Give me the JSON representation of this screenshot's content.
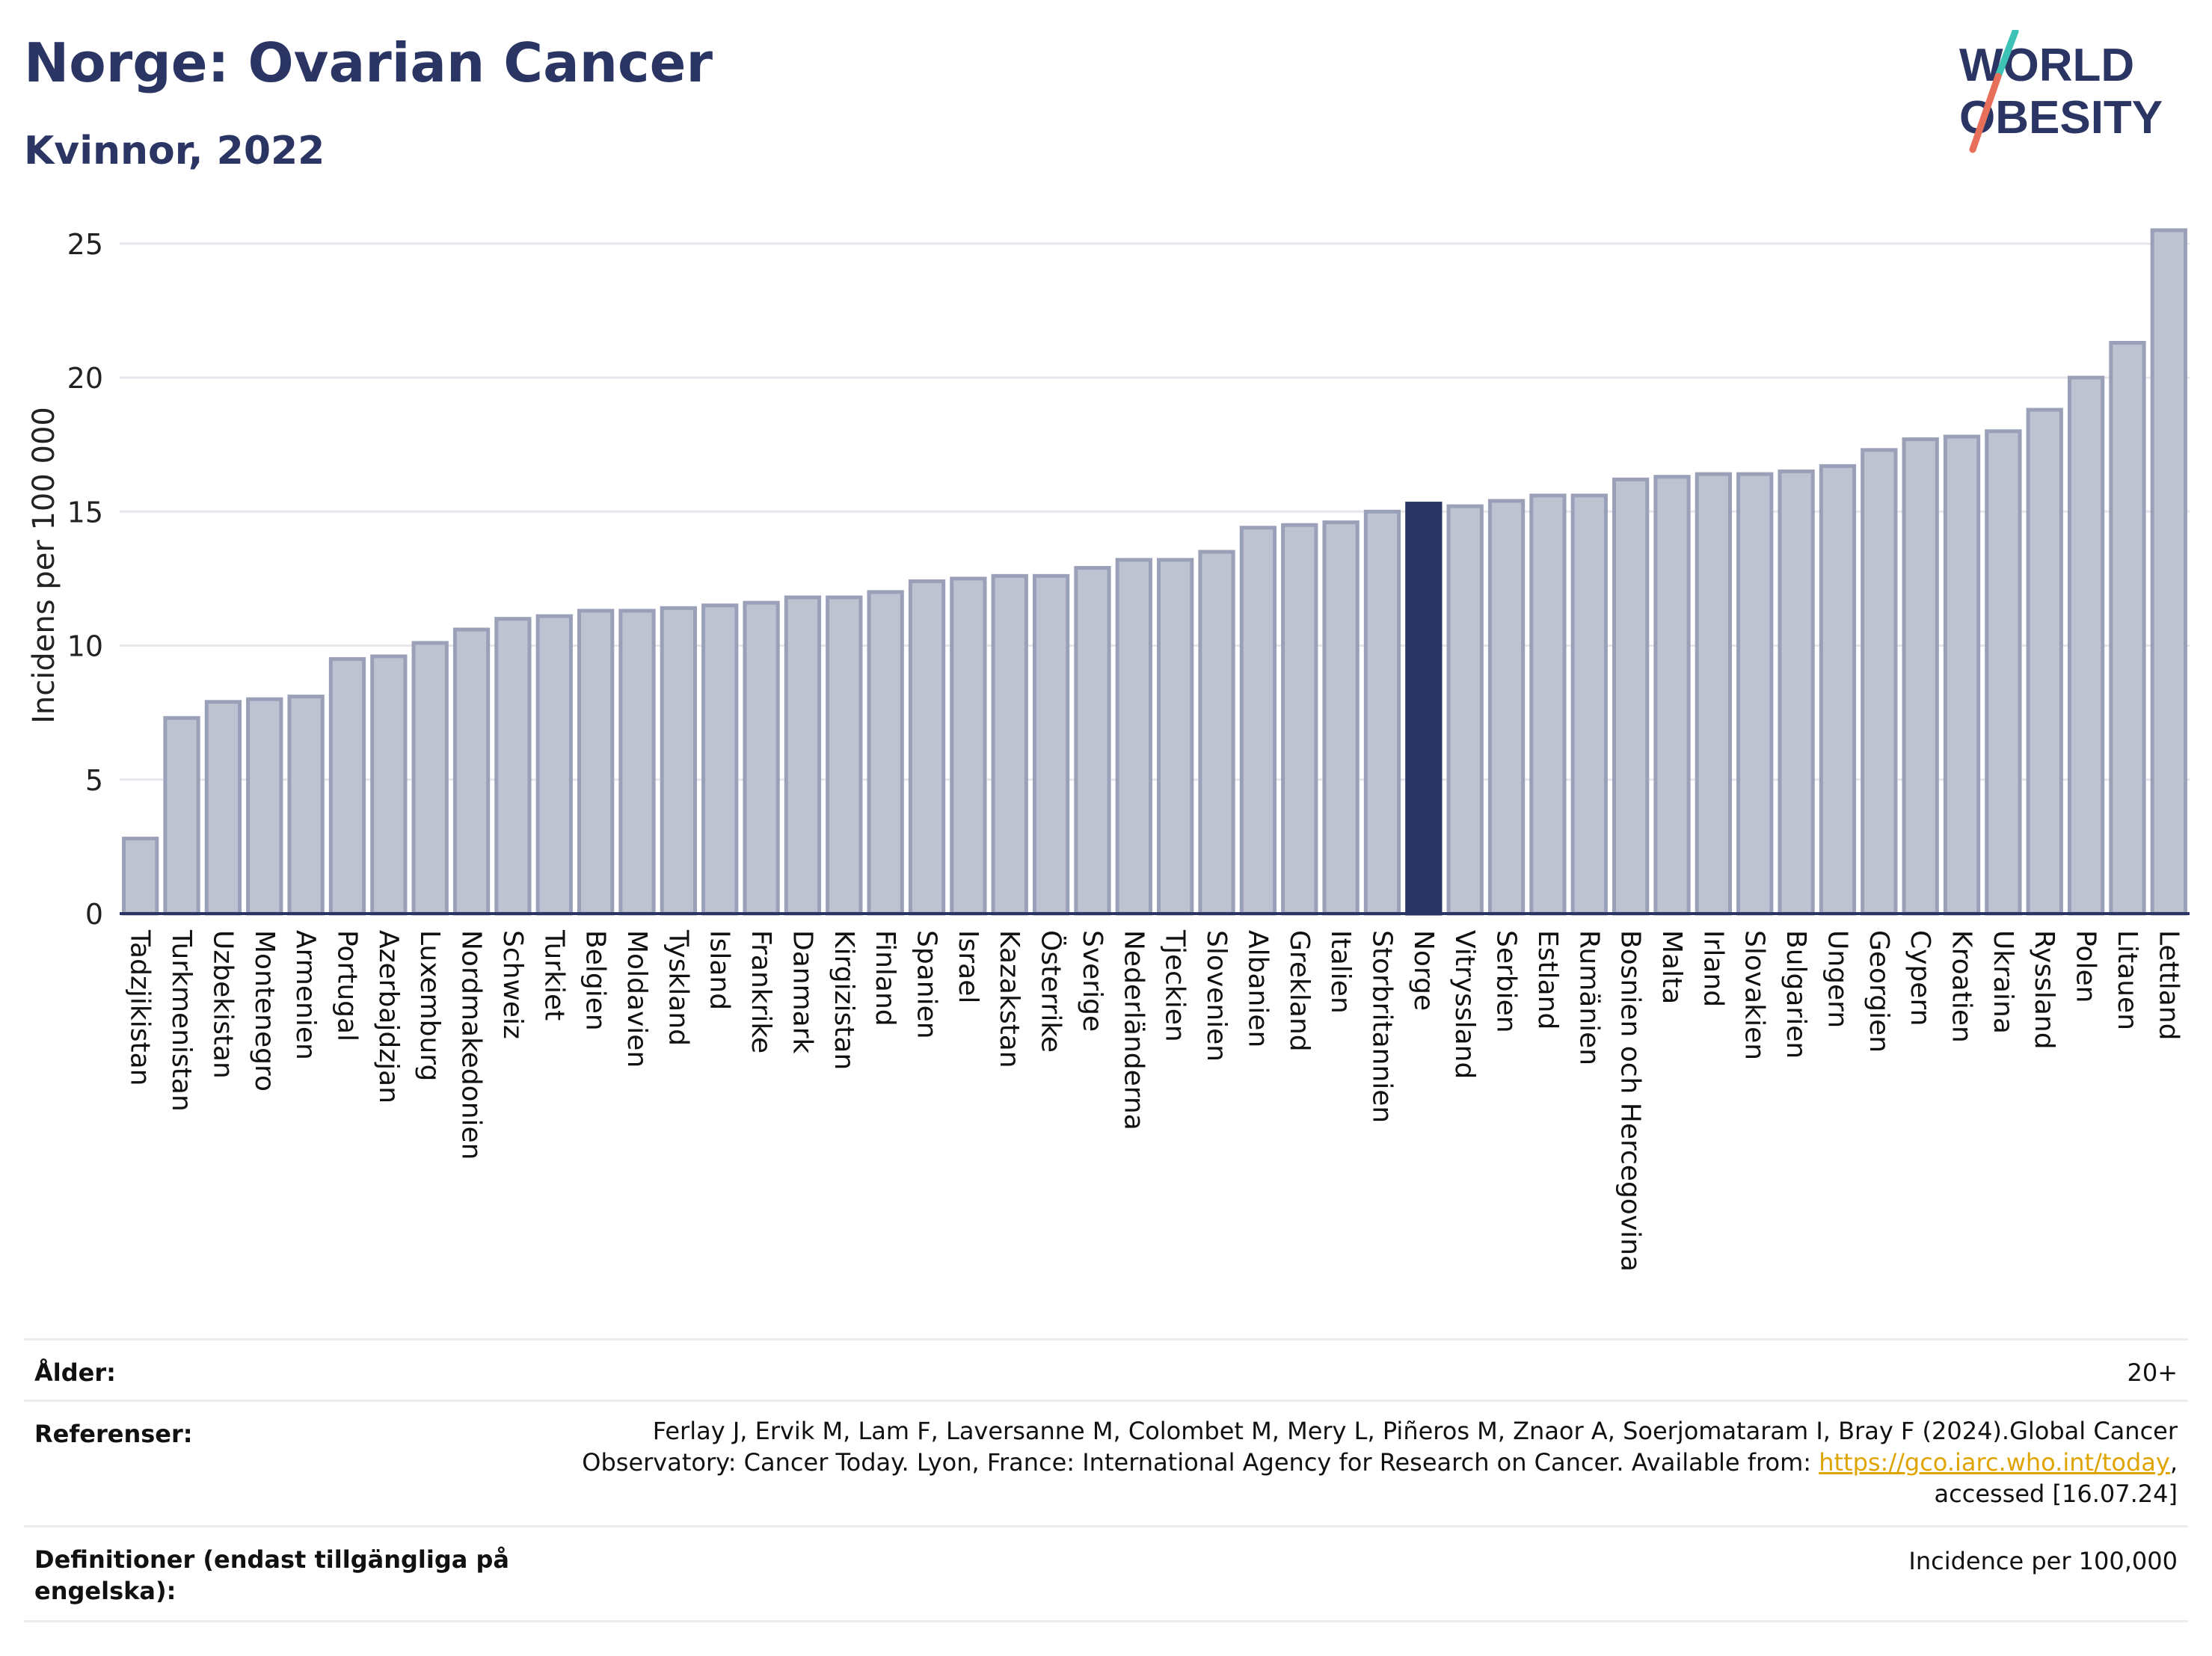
{
  "header": {
    "title": "Norge: Ovarian Cancer",
    "subtitle": "Kvinnor, 2022",
    "logo_line1": "WORLD",
    "logo_line2": "OBESITY"
  },
  "colors": {
    "bar": "#bfc3d1",
    "bar_border": "#9aa0b8",
    "highlight": "#2a3563",
    "title": "#2a3563",
    "link": "#e0a400"
  },
  "chart_data": {
    "type": "bar",
    "ylabel": "Incidens per 100 000",
    "ylim": [
      0,
      26
    ],
    "yticks": [
      0,
      5,
      10,
      15,
      20,
      25
    ],
    "highlight_category": "Norge",
    "grid": true,
    "categories": [
      "Tadzjikistan",
      "Turkmenistan",
      "Uzbekistan",
      "Montenegro",
      "Armenien",
      "Portugal",
      "Azerbajdzjan",
      "Luxemburg",
      "Nordmakedonien",
      "Schweiz",
      "Turkiet",
      "Belgien",
      "Moldavien",
      "Tyskland",
      "Island",
      "Frankrike",
      "Danmark",
      "Kirgizistan",
      "Finland",
      "Spanien",
      "Israel",
      "Kazakstan",
      "Österrike",
      "Sverige",
      "Nederländerna",
      "Tjeckien",
      "Slovenien",
      "Albanien",
      "Grekland",
      "Italien",
      "Storbritannien",
      "Norge",
      "Vitryssland",
      "Serbien",
      "Estland",
      "Rumänien",
      "Bosnien och Hercegovina",
      "Malta",
      "Irland",
      "Slovakien",
      "Bulgarien",
      "Ungern",
      "Georgien",
      "Cypern",
      "Kroatien",
      "Ukraina",
      "Ryssland",
      "Polen",
      "Litauen",
      "Lettland"
    ],
    "values": [
      2.8,
      7.3,
      7.9,
      8.0,
      8.1,
      9.5,
      9.6,
      10.1,
      10.6,
      11.0,
      11.1,
      11.3,
      11.3,
      11.4,
      11.5,
      11.6,
      11.8,
      11.8,
      12.0,
      12.4,
      12.5,
      12.6,
      12.6,
      12.9,
      13.2,
      13.2,
      13.5,
      14.4,
      14.5,
      14.6,
      15.0,
      15.3,
      15.2,
      15.4,
      15.6,
      15.6,
      16.2,
      16.3,
      16.4,
      16.4,
      16.5,
      16.7,
      17.3,
      17.7,
      17.8,
      18.0,
      18.8,
      20.0,
      21.3,
      25.5
    ]
  },
  "info": {
    "age_label": "Ålder:",
    "age_value": "20+",
    "ref_label": "Referenser:",
    "ref_line1": "Ferlay J, Ervik M, Lam F, Laversanne M, Colombet M, Mery L, Piñeros M, Znaor A, Soerjomataram I, Bray F (2024).Global Cancer",
    "ref_line2_text": "Observatory: Cancer Today. Lyon, France: International Agency for Research on Cancer. Available from: ",
    "ref_link": "https://gco.iarc.who.int/today",
    "ref_line2_end": ",",
    "ref_line3": "accessed [16.07.24]",
    "def_label_line1": "Definitioner (endast tillgängliga på",
    "def_label_line2": "engelska):",
    "def_value": "Incidence per 100,000"
  }
}
